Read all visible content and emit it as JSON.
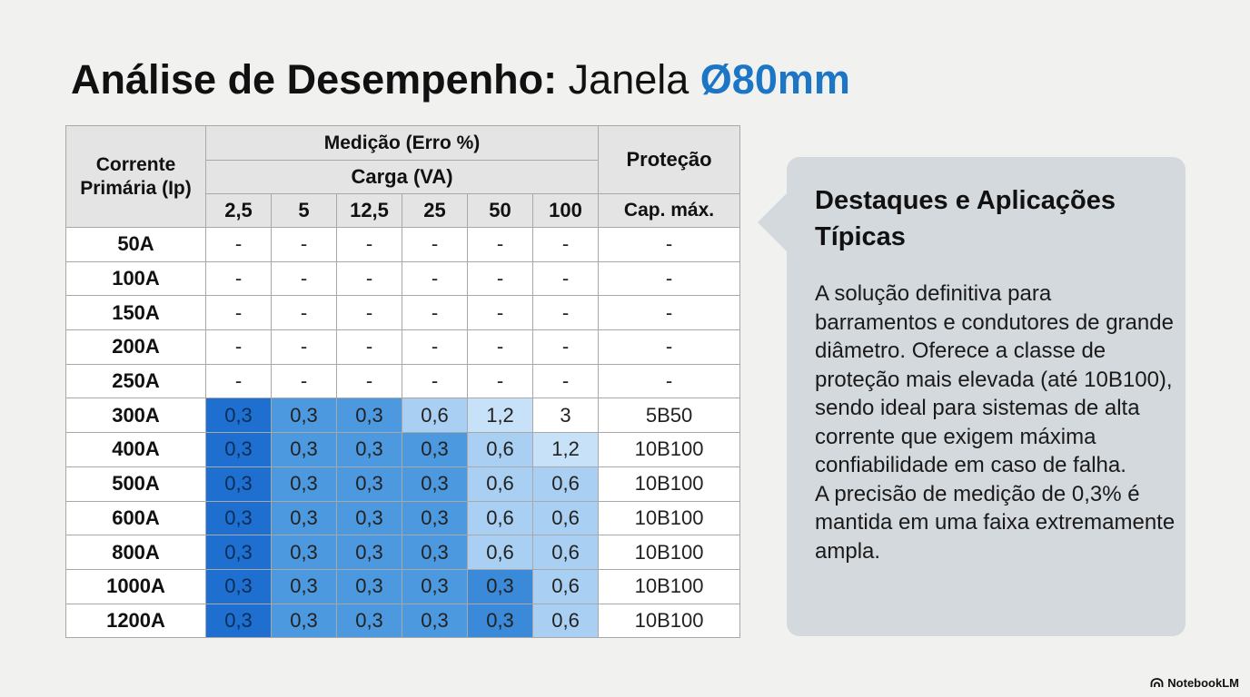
{
  "title": {
    "part1": "Análise de Desempenho:",
    "part2": "Janela",
    "part3": "Ø80mm"
  },
  "table": {
    "header": {
      "corrente_line1": "Corrente",
      "corrente_line2": "Primária (Ip)",
      "medicao": "Medição (Erro %)",
      "carga": "Carga (VA)",
      "protecao": "Proteção",
      "loads": [
        "2,5",
        "5",
        "12,5",
        "25",
        "50",
        "100"
      ],
      "cap_max": "Cap. máx."
    },
    "rows": [
      {
        "current": "50A",
        "values": [
          "-",
          "-",
          "-",
          "-",
          "-",
          "-"
        ],
        "protection": "-"
      },
      {
        "current": "100A",
        "values": [
          "-",
          "-",
          "-",
          "-",
          "-",
          "-"
        ],
        "protection": "-"
      },
      {
        "current": "150A",
        "values": [
          "-",
          "-",
          "-",
          "-",
          "-",
          "-"
        ],
        "protection": "-"
      },
      {
        "current": "200A",
        "values": [
          "-",
          "-",
          "-",
          "-",
          "-",
          "-"
        ],
        "protection": "-"
      },
      {
        "current": "250A",
        "values": [
          "-",
          "-",
          "-",
          "-",
          "-",
          "-"
        ],
        "protection": "-"
      },
      {
        "current": "300A",
        "values": [
          "0,3",
          "0,3",
          "0,3",
          "0,6",
          "1,2",
          "3"
        ],
        "protection": "5B50"
      },
      {
        "current": "400A",
        "values": [
          "0,3",
          "0,3",
          "0,3",
          "0,3",
          "0,6",
          "1,2"
        ],
        "protection": "10B100"
      },
      {
        "current": "500A",
        "values": [
          "0,3",
          "0,3",
          "0,3",
          "0,3",
          "0,6",
          "0,6"
        ],
        "protection": "10B100"
      },
      {
        "current": "600A",
        "values": [
          "0,3",
          "0,3",
          "0,3",
          "0,3",
          "0,6",
          "0,6"
        ],
        "protection": "10B100"
      },
      {
        "current": "800A",
        "values": [
          "0,3",
          "0,3",
          "0,3",
          "0,3",
          "0,6",
          "0,6"
        ],
        "protection": "10B100"
      },
      {
        "current": "1000A",
        "values": [
          "0,3",
          "0,3",
          "0,3",
          "0,3",
          "0,3",
          "0,6"
        ],
        "protection": "10B100"
      },
      {
        "current": "1200A",
        "values": [
          "0,3",
          "0,3",
          "0,3",
          "0,3",
          "0,3",
          "0,6"
        ],
        "protection": "10B100"
      }
    ],
    "heat_colors": {
      "col_2_5": "#1e6fd0",
      "col_mid_03": "#4c99e0",
      "col_far_03": "#3a8ad9",
      "val_06": "#a9d0f2",
      "val_12": "#c7e2f8",
      "val_3": "#ffffff"
    }
  },
  "callout": {
    "heading": "Destaques e Aplicações Típicas",
    "paragraph1": "A solução definitiva para barramentos e condutores de grande diâmetro. Oferece a classe de proteção mais elevada (até 10B100), sendo ideal para sistemas de alta corrente que exigem máxima confiabilidade em caso de falha.",
    "paragraph2": "A precisão de medição de 0,3% é mantida em uma faixa extremamente ampla."
  },
  "brand": {
    "label": "NotebookLM",
    "icon": "notebooklm-logo-icon"
  }
}
